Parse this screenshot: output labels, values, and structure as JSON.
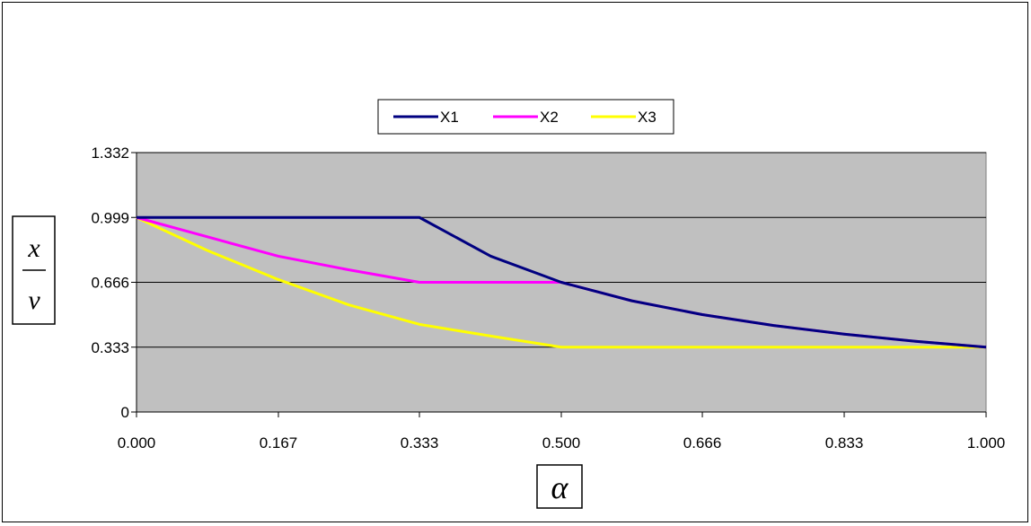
{
  "chart_data": {
    "type": "line",
    "title": "",
    "x": [
      0.0,
      0.083,
      0.167,
      0.25,
      0.333,
      0.417,
      0.5,
      0.583,
      0.666,
      0.75,
      0.833,
      0.917,
      1.0
    ],
    "x_tick_labels": [
      "0.000",
      "0.167",
      "0.333",
      "0.500",
      "0.666",
      "0.833",
      "1.000"
    ],
    "x_ticks": [
      0.0,
      0.167,
      0.333,
      0.5,
      0.666,
      0.833,
      1.0
    ],
    "y_tick_labels": [
      "0",
      "0.333",
      "0.666",
      "0.999",
      "1.332"
    ],
    "y_ticks": [
      0,
      0.333,
      0.666,
      0.999,
      1.332
    ],
    "xlim": [
      0,
      1
    ],
    "ylim": [
      0,
      1.332
    ],
    "xlabel": "α",
    "ylabel_numerator": "x",
    "ylabel_denominator": "v",
    "grid": "horizontal",
    "legend_position": "top-center",
    "plot_background": "#c0c0c0",
    "series": [
      {
        "name": "X1",
        "color": "#000080",
        "values": [
          0.999,
          0.999,
          0.999,
          0.999,
          0.999,
          0.8,
          0.666,
          0.571,
          0.5,
          0.444,
          0.4,
          0.363,
          0.333
        ]
      },
      {
        "name": "X2",
        "color": "#ff00ff",
        "values": [
          0.999,
          0.9,
          0.8,
          0.73,
          0.666,
          0.666,
          0.666,
          0.571,
          0.5,
          0.444,
          0.4,
          0.363,
          0.333
        ]
      },
      {
        "name": "X3",
        "color": "#ffff00",
        "values": [
          0.999,
          0.83,
          0.68,
          0.55,
          0.45,
          0.39,
          0.333,
          0.333,
          0.333,
          0.333,
          0.333,
          0.333,
          0.333
        ]
      }
    ]
  }
}
